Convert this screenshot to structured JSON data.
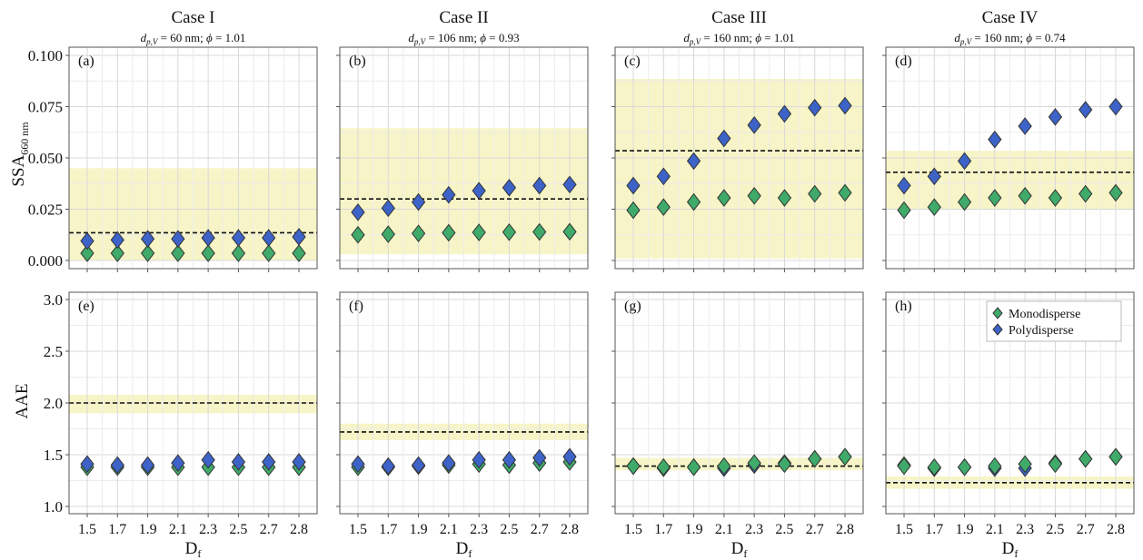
{
  "figure": {
    "cases": [
      {
        "title": "Case I",
        "dp": "60",
        "phi": "1.01"
      },
      {
        "title": "Case II",
        "dp": "106",
        "phi": "0.93"
      },
      {
        "title": "Case III",
        "dp": "160",
        "phi": "1.01"
      },
      {
        "title": "Case IV",
        "dp": "160",
        "phi": "0.74"
      }
    ],
    "subtitle_parts": {
      "d": "d",
      "sub": "p,V",
      "eq": " = ",
      "unit": " nm; ",
      "phi_sym": "ϕ",
      "eq2": " = "
    },
    "ylabels": {
      "top": {
        "main": "SSA",
        "sub": "660 nm"
      },
      "bottom": {
        "main": "AAE"
      }
    },
    "xlabel": {
      "main": "D",
      "sub": "f"
    },
    "legend": {
      "mono": "Monodisperse",
      "poly": "Polydisperse",
      "placement": "top-right of panel (h)"
    },
    "colors": {
      "mono": "#3faa6a",
      "poly": "#3d63c8",
      "band": "#f7f5c8",
      "grid": "#d8d8d8"
    }
  },
  "chart_data": [
    {
      "panel": "(a)",
      "type": "scatter",
      "case": "Case I",
      "x_ticks": [
        "1.5",
        "1.7",
        "1.9",
        "2.1",
        "2.3",
        "2.5",
        "2.7",
        "2.8"
      ],
      "ylim": [
        -0.004,
        0.104
      ],
      "y_ticks": [
        "0.000",
        "0.025",
        "0.050",
        "0.075",
        "0.100"
      ],
      "grid": true,
      "reference_line": 0.0135,
      "reference_band": [
        0.0,
        0.045
      ],
      "series": [
        {
          "name": "Monodisperse",
          "values": [
            0.0035,
            0.0035,
            0.0035,
            0.0035,
            0.0035,
            0.0035,
            0.0035,
            0.0035
          ]
        },
        {
          "name": "Polydisperse",
          "values": [
            0.0095,
            0.01,
            0.0105,
            0.0105,
            0.011,
            0.011,
            0.011,
            0.0115
          ]
        }
      ]
    },
    {
      "panel": "(b)",
      "type": "scatter",
      "case": "Case II",
      "x_ticks": [
        "1.5",
        "1.7",
        "1.9",
        "2.1",
        "2.3",
        "2.5",
        "2.7",
        "2.8"
      ],
      "ylim": [
        -0.004,
        0.104
      ],
      "grid": true,
      "reference_line": 0.03,
      "reference_band": [
        0.003,
        0.0645
      ],
      "series": [
        {
          "name": "Monodisperse",
          "values": [
            0.0125,
            0.0128,
            0.0132,
            0.0135,
            0.0137,
            0.0138,
            0.0139,
            0.014
          ]
        },
        {
          "name": "Polydisperse",
          "values": [
            0.0235,
            0.0255,
            0.0285,
            0.032,
            0.034,
            0.0355,
            0.0365,
            0.037
          ]
        }
      ]
    },
    {
      "panel": "(c)",
      "type": "scatter",
      "case": "Case III",
      "x_ticks": [
        "1.5",
        "1.7",
        "1.9",
        "2.1",
        "2.3",
        "2.5",
        "2.7",
        "2.8"
      ],
      "ylim": [
        -0.004,
        0.104
      ],
      "grid": true,
      "reference_line": 0.0535,
      "reference_band": [
        0.001,
        0.0885
      ],
      "series": [
        {
          "name": "Monodisperse",
          "values": [
            0.0245,
            0.026,
            0.0285,
            0.0305,
            0.0315,
            0.0305,
            0.0325,
            0.033
          ]
        },
        {
          "name": "Polydisperse",
          "values": [
            0.0365,
            0.041,
            0.0485,
            0.0595,
            0.066,
            0.0715,
            0.0745,
            0.0755
          ]
        }
      ]
    },
    {
      "panel": "(d)",
      "type": "scatter",
      "case": "Case IV",
      "x_ticks": [
        "1.5",
        "1.7",
        "1.9",
        "2.1",
        "2.3",
        "2.5",
        "2.7",
        "2.8"
      ],
      "ylim": [
        -0.004,
        0.104
      ],
      "grid": true,
      "reference_line": 0.043,
      "reference_band": [
        0.025,
        0.0535
      ],
      "series": [
        {
          "name": "Monodisperse",
          "values": [
            0.0245,
            0.026,
            0.0285,
            0.0305,
            0.0315,
            0.0305,
            0.0325,
            0.033
          ]
        },
        {
          "name": "Polydisperse",
          "values": [
            0.0365,
            0.041,
            0.0485,
            0.059,
            0.0655,
            0.07,
            0.0735,
            0.075
          ]
        }
      ]
    },
    {
      "panel": "(e)",
      "type": "scatter",
      "case": "Case I",
      "x_ticks": [
        "1.5",
        "1.7",
        "1.9",
        "2.1",
        "2.3",
        "2.5",
        "2.7",
        "2.8"
      ],
      "ylim": [
        0.93,
        3.07
      ],
      "y_ticks": [
        "1.0",
        "1.5",
        "2.0",
        "2.5",
        "3.0"
      ],
      "grid": true,
      "reference_line": 2.0,
      "reference_band": [
        1.9,
        2.08
      ],
      "series": [
        {
          "name": "Monodisperse",
          "values": [
            1.38,
            1.38,
            1.38,
            1.38,
            1.38,
            1.38,
            1.38,
            1.38
          ]
        },
        {
          "name": "Polydisperse",
          "values": [
            1.41,
            1.4,
            1.4,
            1.42,
            1.45,
            1.43,
            1.43,
            1.43
          ]
        }
      ]
    },
    {
      "panel": "(f)",
      "type": "scatter",
      "case": "Case II",
      "x_ticks": [
        "1.5",
        "1.7",
        "1.9",
        "2.1",
        "2.3",
        "2.5",
        "2.7",
        "2.8"
      ],
      "ylim": [
        0.93,
        3.07
      ],
      "grid": true,
      "reference_line": 1.72,
      "reference_band": [
        1.64,
        1.8
      ],
      "series": [
        {
          "name": "Monodisperse",
          "values": [
            1.38,
            1.38,
            1.39,
            1.4,
            1.41,
            1.4,
            1.42,
            1.43
          ]
        },
        {
          "name": "Polydisperse",
          "values": [
            1.41,
            1.39,
            1.4,
            1.42,
            1.45,
            1.45,
            1.47,
            1.48
          ]
        }
      ]
    },
    {
      "panel": "(g)",
      "type": "scatter",
      "case": "Case III",
      "x_ticks": [
        "1.5",
        "1.7",
        "1.9",
        "2.1",
        "2.3",
        "2.5",
        "2.7",
        "2.8"
      ],
      "ylim": [
        0.93,
        3.07
      ],
      "grid": true,
      "reference_line": 1.39,
      "reference_band": [
        1.35,
        1.47
      ],
      "series": [
        {
          "name": "Polydisperse",
          "values": [
            1.39,
            1.37,
            1.38,
            1.37,
            1.4,
            1.42,
            1.46,
            1.48
          ]
        },
        {
          "name": "Monodisperse",
          "values": [
            1.39,
            1.38,
            1.38,
            1.39,
            1.42,
            1.41,
            1.46,
            1.48
          ]
        }
      ]
    },
    {
      "panel": "(h)",
      "type": "scatter",
      "case": "Case IV",
      "x_ticks": [
        "1.5",
        "1.7",
        "1.9",
        "2.1",
        "2.3",
        "2.5",
        "2.7",
        "2.8"
      ],
      "ylim": [
        0.93,
        3.07
      ],
      "grid": true,
      "reference_line": 1.23,
      "reference_band": [
        1.17,
        1.29
      ],
      "series": [
        {
          "name": "Polydisperse",
          "values": [
            1.4,
            1.37,
            1.38,
            1.37,
            1.37,
            1.42,
            1.46,
            1.48
          ]
        },
        {
          "name": "Monodisperse",
          "values": [
            1.39,
            1.38,
            1.38,
            1.39,
            1.41,
            1.41,
            1.46,
            1.48
          ]
        }
      ]
    }
  ]
}
